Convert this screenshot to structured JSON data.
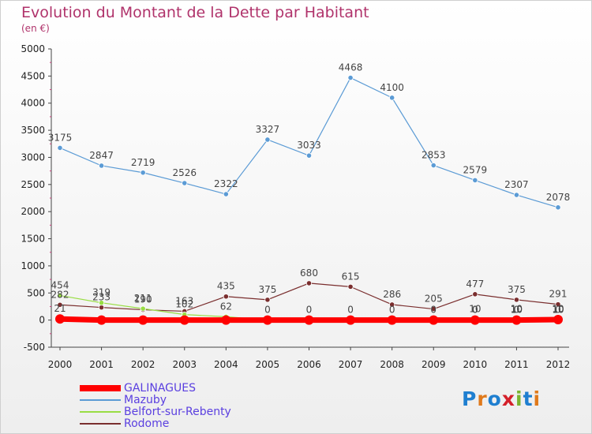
{
  "title": "Evolution du Montant de la Dette par Habitant",
  "subtitle": "(en €)",
  "logo": {
    "text": "Proxiti",
    "colors": [
      "#1f7fd0",
      "#e07a1c",
      "#1f7fd0",
      "#d4202a",
      "#7ab32e",
      "#1f7fd0",
      "#e07a1c"
    ]
  },
  "chart_data": {
    "type": "line",
    "x": [
      "2000",
      "2001",
      "2002",
      "2003",
      "2004",
      "2005",
      "2006",
      "2007",
      "2008",
      "2009",
      "2010",
      "2011",
      "2012"
    ],
    "ylim": [
      -500,
      5000
    ],
    "yticks": [
      -500,
      0,
      500,
      1000,
      1500,
      2000,
      2500,
      3000,
      3500,
      4000,
      4500,
      5000
    ],
    "grid": false,
    "legend": "bottom-left",
    "series": [
      {
        "name": "GALINAGUES",
        "color": "#ff0000",
        "values": [
          21,
          0,
          0,
          0,
          0,
          0,
          0,
          0,
          0,
          0,
          0,
          0,
          10
        ],
        "labels": [
          "21",
          "",
          "",
          "",
          "",
          "",
          "",
          "",
          "",
          "",
          "",
          "",
          ""
        ]
      },
      {
        "name": "Mazuby",
        "color": "#5b9bd5",
        "values": [
          3175,
          2847,
          2719,
          2526,
          2322,
          3327,
          3033,
          4468,
          4100,
          2853,
          2579,
          2307,
          2078
        ],
        "labels": [
          "3175",
          "2847",
          "2719",
          "2526",
          "2322",
          "3327",
          "3033",
          "4468",
          "4100",
          "2853",
          "2579",
          "2307",
          "2078"
        ]
      },
      {
        "name": "Belfort-sur-Rebenty",
        "color": "#99dd44",
        "values": [
          454,
          319,
          211,
          102,
          62,
          0,
          0,
          0,
          0,
          0,
          0,
          0,
          0
        ],
        "labels": [
          "454",
          "319",
          "211",
          "102",
          "62",
          "0",
          "0",
          "0",
          "0",
          "0",
          "0",
          "0",
          "0"
        ]
      },
      {
        "name": "Rodome",
        "color": "#7a2e2e",
        "values": [
          282,
          233,
          190,
          163,
          435,
          375,
          680,
          615,
          286,
          205,
          477,
          375,
          291
        ],
        "labels": [
          "282",
          "233",
          "190",
          "163",
          "435",
          "375",
          "680",
          "615",
          "286",
          "205",
          "477",
          "375",
          "291"
        ]
      }
    ],
    "extra_labels": [
      "0",
      "10",
      "10",
      "10",
      "10",
      "10"
    ]
  }
}
